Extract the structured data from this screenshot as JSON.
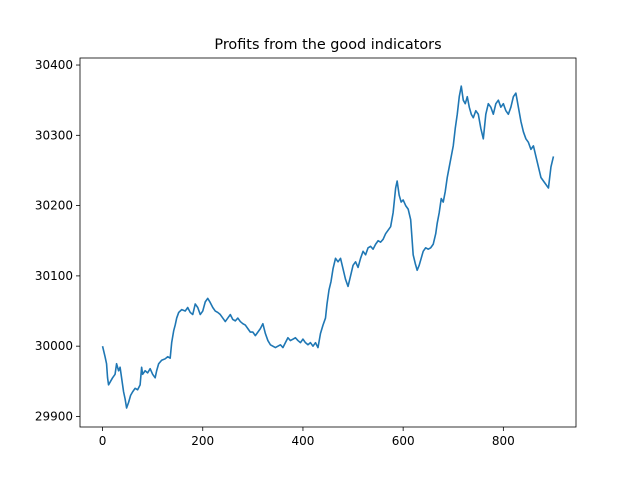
{
  "chart_data": {
    "type": "line",
    "title": "Profits from the good indicators",
    "xlabel": "",
    "ylabel": "",
    "xlim": [
      -45,
      945
    ],
    "ylim": [
      29885,
      30410
    ],
    "xticks": [
      0,
      200,
      400,
      600,
      800
    ],
    "yticks": [
      29900,
      30000,
      30100,
      30200,
      30300,
      30400
    ],
    "grid": false,
    "legend": "none",
    "series": [
      {
        "color": "#1f77b4",
        "points": [
          [
            0,
            30000
          ],
          [
            5,
            29985
          ],
          [
            8,
            29975
          ],
          [
            10,
            29955
          ],
          [
            12,
            29945
          ],
          [
            16,
            29950
          ],
          [
            20,
            29955
          ],
          [
            25,
            29960
          ],
          [
            28,
            29975
          ],
          [
            32,
            29965
          ],
          [
            35,
            29970
          ],
          [
            38,
            29955
          ],
          [
            42,
            29935
          ],
          [
            45,
            29925
          ],
          [
            48,
            29912
          ],
          [
            52,
            29920
          ],
          [
            56,
            29930
          ],
          [
            60,
            29935
          ],
          [
            65,
            29940
          ],
          [
            70,
            29938
          ],
          [
            75,
            29945
          ],
          [
            78,
            29970
          ],
          [
            80,
            29960
          ],
          [
            85,
            29965
          ],
          [
            90,
            29962
          ],
          [
            95,
            29968
          ],
          [
            100,
            29960
          ],
          [
            105,
            29955
          ],
          [
            108,
            29965
          ],
          [
            112,
            29975
          ],
          [
            118,
            29980
          ],
          [
            125,
            29982
          ],
          [
            130,
            29985
          ],
          [
            135,
            29983
          ],
          [
            138,
            30005
          ],
          [
            142,
            30022
          ],
          [
            145,
            30030
          ],
          [
            148,
            30040
          ],
          [
            152,
            30048
          ],
          [
            158,
            30052
          ],
          [
            165,
            30050
          ],
          [
            170,
            30055
          ],
          [
            175,
            30048
          ],
          [
            180,
            30045
          ],
          [
            185,
            30060
          ],
          [
            190,
            30055
          ],
          [
            195,
            30045
          ],
          [
            200,
            30050
          ],
          [
            205,
            30063
          ],
          [
            210,
            30068
          ],
          [
            215,
            30062
          ],
          [
            220,
            30055
          ],
          [
            225,
            30050
          ],
          [
            230,
            30048
          ],
          [
            235,
            30045
          ],
          [
            240,
            30040
          ],
          [
            245,
            30035
          ],
          [
            250,
            30040
          ],
          [
            255,
            30045
          ],
          [
            260,
            30038
          ],
          [
            265,
            30036
          ],
          [
            270,
            30040
          ],
          [
            275,
            30035
          ],
          [
            280,
            30032
          ],
          [
            285,
            30030
          ],
          [
            290,
            30025
          ],
          [
            295,
            30020
          ],
          [
            300,
            30020
          ],
          [
            305,
            30015
          ],
          [
            310,
            30020
          ],
          [
            315,
            30025
          ],
          [
            320,
            30032
          ],
          [
            325,
            30018
          ],
          [
            330,
            30008
          ],
          [
            335,
            30002
          ],
          [
            340,
            30000
          ],
          [
            345,
            29998
          ],
          [
            350,
            30000
          ],
          [
            355,
            30002
          ],
          [
            360,
            29998
          ],
          [
            365,
            30005
          ],
          [
            370,
            30012
          ],
          [
            375,
            30008
          ],
          [
            380,
            30010
          ],
          [
            385,
            30012
          ],
          [
            390,
            30008
          ],
          [
            395,
            30005
          ],
          [
            400,
            30010
          ],
          [
            405,
            30005
          ],
          [
            410,
            30002
          ],
          [
            415,
            30005
          ],
          [
            420,
            30000
          ],
          [
            425,
            30005
          ],
          [
            430,
            29998
          ],
          [
            435,
            30018
          ],
          [
            440,
            30030
          ],
          [
            445,
            30040
          ],
          [
            448,
            30060
          ],
          [
            452,
            30080
          ],
          [
            456,
            30092
          ],
          [
            460,
            30110
          ],
          [
            465,
            30125
          ],
          [
            470,
            30120
          ],
          [
            475,
            30125
          ],
          [
            480,
            30110
          ],
          [
            485,
            30095
          ],
          [
            490,
            30085
          ],
          [
            495,
            30100
          ],
          [
            500,
            30115
          ],
          [
            505,
            30120
          ],
          [
            510,
            30112
          ],
          [
            515,
            30125
          ],
          [
            520,
            30135
          ],
          [
            525,
            30130
          ],
          [
            530,
            30140
          ],
          [
            535,
            30142
          ],
          [
            540,
            30138
          ],
          [
            545,
            30145
          ],
          [
            550,
            30150
          ],
          [
            555,
            30148
          ],
          [
            560,
            30152
          ],
          [
            565,
            30160
          ],
          [
            570,
            30165
          ],
          [
            575,
            30170
          ],
          [
            580,
            30190
          ],
          [
            585,
            30225
          ],
          [
            588,
            30235
          ],
          [
            592,
            30215
          ],
          [
            596,
            30205
          ],
          [
            600,
            30208
          ],
          [
            605,
            30200
          ],
          [
            610,
            30195
          ],
          [
            615,
            30180
          ],
          [
            618,
            30150
          ],
          [
            620,
            30130
          ],
          [
            624,
            30118
          ],
          [
            628,
            30108
          ],
          [
            632,
            30115
          ],
          [
            636,
            30125
          ],
          [
            640,
            30135
          ],
          [
            645,
            30140
          ],
          [
            650,
            30138
          ],
          [
            655,
            30140
          ],
          [
            660,
            30145
          ],
          [
            665,
            30160
          ],
          [
            668,
            30175
          ],
          [
            672,
            30190
          ],
          [
            676,
            30210
          ],
          [
            680,
            30205
          ],
          [
            684,
            30220
          ],
          [
            688,
            30240
          ],
          [
            692,
            30255
          ],
          [
            696,
            30270
          ],
          [
            700,
            30285
          ],
          [
            704,
            30310
          ],
          [
            708,
            30330
          ],
          [
            712,
            30355
          ],
          [
            716,
            30370
          ],
          [
            720,
            30350
          ],
          [
            724,
            30345
          ],
          [
            728,
            30355
          ],
          [
            732,
            30340
          ],
          [
            736,
            30330
          ],
          [
            740,
            30325
          ],
          [
            745,
            30335
          ],
          [
            750,
            30330
          ],
          [
            755,
            30310
          ],
          [
            760,
            30295
          ],
          [
            765,
            30330
          ],
          [
            770,
            30345
          ],
          [
            775,
            30340
          ],
          [
            780,
            30330
          ],
          [
            785,
            30345
          ],
          [
            790,
            30350
          ],
          [
            795,
            30340
          ],
          [
            800,
            30345
          ],
          [
            805,
            30335
          ],
          [
            810,
            30330
          ],
          [
            815,
            30340
          ],
          [
            820,
            30355
          ],
          [
            825,
            30360
          ],
          [
            830,
            30340
          ],
          [
            835,
            30320
          ],
          [
            840,
            30305
          ],
          [
            845,
            30295
          ],
          [
            850,
            30290
          ],
          [
            855,
            30280
          ],
          [
            860,
            30285
          ],
          [
            865,
            30270
          ],
          [
            870,
            30255
          ],
          [
            875,
            30240
          ],
          [
            880,
            30235
          ],
          [
            885,
            30230
          ],
          [
            890,
            30225
          ],
          [
            895,
            30255
          ],
          [
            900,
            30270
          ]
        ]
      }
    ]
  }
}
